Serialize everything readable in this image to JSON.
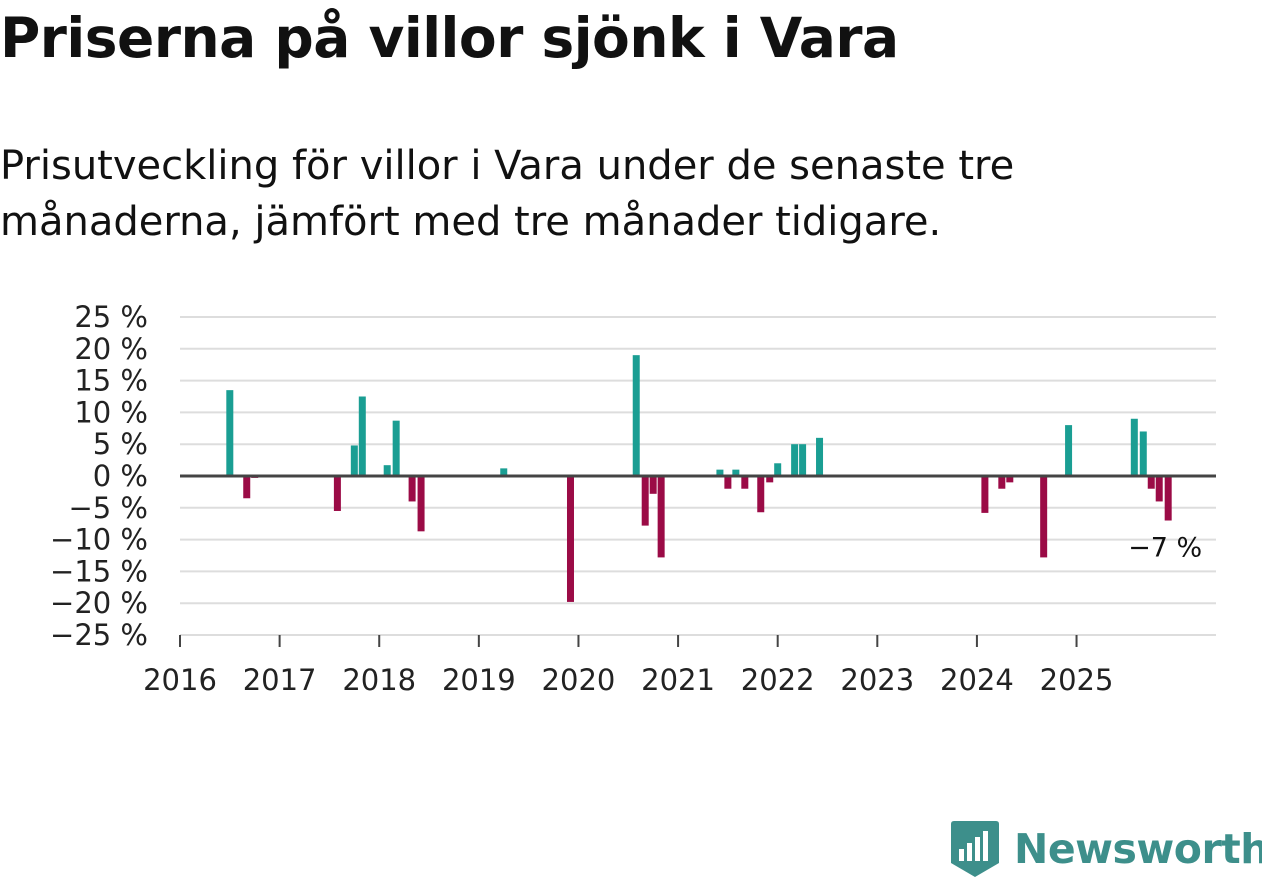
{
  "title": "Priserna på villor sjönk i Vara",
  "subtitle": "Prisutveckling för villor i Vara under de senaste tre månaderna, jämfört med tre månader tidigare.",
  "brand": {
    "name": "Newsworthy",
    "icon": "newsworthy-logo-icon"
  },
  "colors": {
    "positive": "#1a9e93",
    "negative": "#9b0b46",
    "grid": "#dddddd",
    "zero_line": "#444444",
    "brand": "#3d8f8b"
  },
  "chart_data": {
    "type": "bar",
    "title": "Priserna på villor sjönk i Vara",
    "xlabel": "",
    "ylabel": "",
    "ylim": [
      -25,
      25
    ],
    "yticks": [
      25,
      20,
      15,
      10,
      5,
      0,
      -5,
      -10,
      -15,
      -20,
      -25
    ],
    "ytick_labels": [
      "25 %",
      "20 %",
      "15 %",
      "10 %",
      "5 %",
      "0 %",
      "−5 %",
      "−10 %",
      "−15 %",
      "−20 %",
      "−25 %"
    ],
    "xlim": [
      2016,
      2026.4
    ],
    "xticks": [
      2016,
      2017,
      2018,
      2019,
      2020,
      2021,
      2022,
      2023,
      2024,
      2025
    ],
    "xtick_labels": [
      "2016",
      "2017",
      "2018",
      "2019",
      "2020",
      "2021",
      "2022",
      "2023",
      "2024",
      "2025"
    ],
    "grid": true,
    "annotation": {
      "text": "−7 %",
      "x": 2025.92,
      "y": -7
    },
    "series": [
      {
        "name": "Prisutveckling",
        "points": [
          {
            "x": 2016.5,
            "y": 13.5
          },
          {
            "x": 2016.67,
            "y": -3.5
          },
          {
            "x": 2016.75,
            "y": -0.3
          },
          {
            "x": 2017.58,
            "y": -5.5
          },
          {
            "x": 2017.75,
            "y": 4.8
          },
          {
            "x": 2017.83,
            "y": 12.5
          },
          {
            "x": 2018.08,
            "y": 1.7
          },
          {
            "x": 2018.17,
            "y": 8.7
          },
          {
            "x": 2018.33,
            "y": -4
          },
          {
            "x": 2018.42,
            "y": -8.7
          },
          {
            "x": 2019.25,
            "y": 1.2
          },
          {
            "x": 2019.92,
            "y": -19.8
          },
          {
            "x": 2020.58,
            "y": 19
          },
          {
            "x": 2020.67,
            "y": -7.8
          },
          {
            "x": 2020.75,
            "y": -2.8
          },
          {
            "x": 2020.83,
            "y": -12.8
          },
          {
            "x": 2021.42,
            "y": 1
          },
          {
            "x": 2021.5,
            "y": -2
          },
          {
            "x": 2021.58,
            "y": 1
          },
          {
            "x": 2021.67,
            "y": -2
          },
          {
            "x": 2021.83,
            "y": -5.7
          },
          {
            "x": 2021.92,
            "y": -1
          },
          {
            "x": 2022.0,
            "y": 2
          },
          {
            "x": 2022.17,
            "y": 5
          },
          {
            "x": 2022.25,
            "y": 5
          },
          {
            "x": 2022.42,
            "y": 6
          },
          {
            "x": 2024.08,
            "y": -5.8
          },
          {
            "x": 2024.25,
            "y": -2
          },
          {
            "x": 2024.33,
            "y": -1
          },
          {
            "x": 2024.67,
            "y": -12.8
          },
          {
            "x": 2024.92,
            "y": 8
          },
          {
            "x": 2025.58,
            "y": 9
          },
          {
            "x": 2025.67,
            "y": 7
          },
          {
            "x": 2025.75,
            "y": -2
          },
          {
            "x": 2025.83,
            "y": -4
          },
          {
            "x": 2025.92,
            "y": -7
          }
        ]
      }
    ]
  }
}
